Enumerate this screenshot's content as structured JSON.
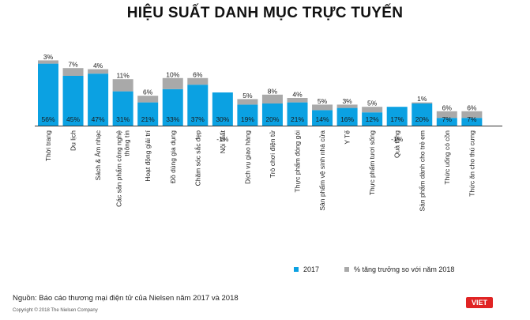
{
  "title": "HIỆU SUẤT DANH MỤC TRỰC TUYẾN",
  "colors": {
    "series_2017": "#0ba1e2",
    "series_growth": "#a9a9a9"
  },
  "legend": {
    "series_2017": "2017",
    "series_growth": "% tăng trưởng so với năm 2018"
  },
  "source": "Nguồn: Báo cáo thương mại điện tử của Nielsen năm 2017 và 2018",
  "copyright": "Copyright © 2018 The Nielsen Company",
  "logo_text": "VIET",
  "chart_data": {
    "type": "bar",
    "stacked": true,
    "categories": [
      [
        "Thời trang"
      ],
      [
        "Du lịch"
      ],
      [
        "Sách & Âm nhạc"
      ],
      [
        "Các sản phẩm công nghệ",
        "thông tin"
      ],
      [
        "Hoạt động giải trí"
      ],
      [
        "Đồ dùng gia dụng"
      ],
      [
        "Chăm sóc sắc đẹp"
      ],
      [
        "Nội thất"
      ],
      [
        "Dịch vụ giao hàng"
      ],
      [
        "Trò chơi điện tử"
      ],
      [
        "Thực phẩm đóng gói"
      ],
      [
        "Sản phẩm vệ sinh nhà cửa"
      ],
      [
        "Y Tế"
      ],
      [
        "Thực phẩm tươi sống"
      ],
      [
        "Quà tặng"
      ],
      [
        "Sản phẩm dành cho trẻ em"
      ],
      [
        "Thức uống có cồn"
      ],
      [
        "Thức ăn cho thú cưng"
      ]
    ],
    "series": [
      {
        "name": "2017",
        "values": [
          56,
          45,
          47,
          31,
          21,
          33,
          37,
          30,
          19,
          20,
          21,
          14,
          16,
          12,
          17,
          20,
          7,
          7
        ],
        "labels": [
          "56%",
          "45%",
          "47%",
          "31%",
          "21%",
          "33%",
          "37%",
          "30%",
          "19%",
          "20%",
          "21%",
          "14%",
          "16%",
          "12%",
          "17%",
          "20%",
          "7%",
          "7%"
        ]
      },
      {
        "name": "% tăng trưởng so với năm 2018",
        "values": [
          3,
          7,
          4,
          11,
          6,
          10,
          6,
          -1,
          5,
          8,
          4,
          5,
          3,
          5,
          -1,
          1,
          6,
          6
        ],
        "labels": [
          "3%",
          "7%",
          "4%",
          "11%",
          "6%",
          "10%",
          "6%",
          "-1%",
          "5%",
          "8%",
          "4%",
          "5%",
          "3%",
          "5%",
          "-1%",
          "1%",
          "6%",
          "6%"
        ]
      }
    ]
  }
}
